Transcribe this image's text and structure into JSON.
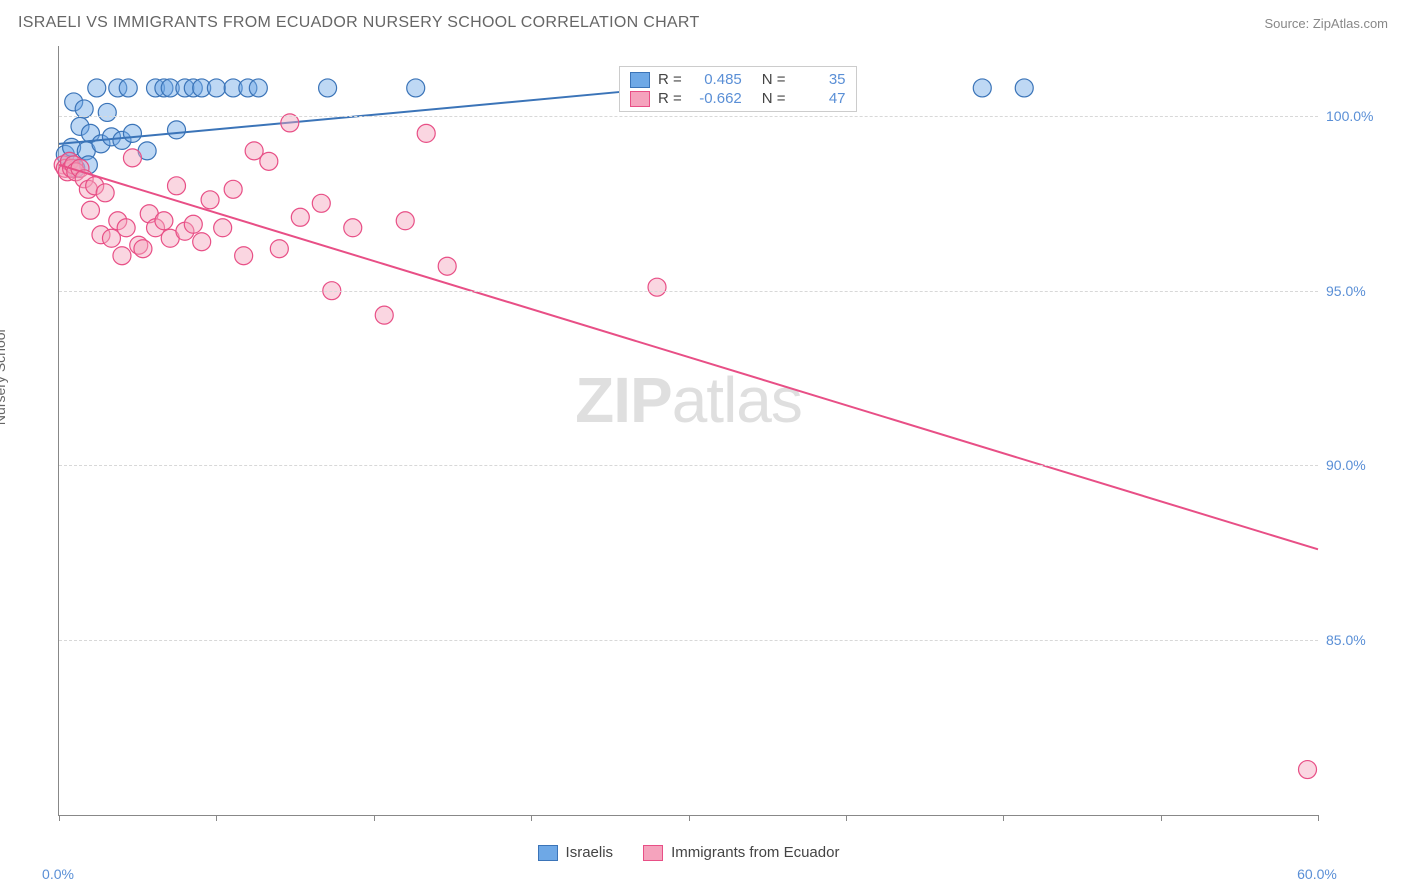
{
  "header": {
    "title": "ISRAELI VS IMMIGRANTS FROM ECUADOR NURSERY SCHOOL CORRELATION CHART",
    "source_label": "Source: ZipAtlas.com"
  },
  "chart": {
    "type": "scatter",
    "y_axis_label": "Nursery School",
    "xlim": [
      0,
      60
    ],
    "ylim": [
      80,
      102
    ],
    "x_ticks": [
      0,
      7.5,
      15,
      22.5,
      30,
      37.5,
      45,
      52.5,
      60
    ],
    "x_tick_labels": {
      "0": "0.0%",
      "60": "60.0%"
    },
    "y_ticks": [
      85,
      90,
      95,
      100
    ],
    "y_tick_labels": {
      "85": "85.0%",
      "90": "90.0%",
      "95": "95.0%",
      "100": "100.0%"
    },
    "grid_color": "#d8d8d8",
    "background_color": "#ffffff",
    "axis_color": "#888888",
    "tick_label_color": "#5a8fd6",
    "watermark": "ZIPatlas",
    "marker_radius": 9,
    "marker_opacity": 0.45,
    "line_width": 2,
    "series": [
      {
        "name": "Israelis",
        "color_fill": "#6ea8e6",
        "color_stroke": "#3b74b8",
        "R": "0.485",
        "N": "35",
        "trend": {
          "x1": 0,
          "y1": 99.2,
          "x2": 27,
          "y2": 100.7
        },
        "points": [
          [
            0.3,
            98.9
          ],
          [
            0.5,
            98.7
          ],
          [
            0.6,
            99.1
          ],
          [
            0.7,
            100.4
          ],
          [
            0.8,
            98.5
          ],
          [
            1.0,
            99.7
          ],
          [
            1.2,
            100.2
          ],
          [
            1.3,
            99.0
          ],
          [
            1.4,
            98.6
          ],
          [
            1.5,
            99.5
          ],
          [
            1.8,
            100.8
          ],
          [
            2.0,
            99.2
          ],
          [
            2.3,
            100.1
          ],
          [
            2.5,
            99.4
          ],
          [
            2.8,
            100.8
          ],
          [
            3.0,
            99.3
          ],
          [
            3.3,
            100.8
          ],
          [
            3.5,
            99.5
          ],
          [
            4.2,
            99.0
          ],
          [
            4.6,
            100.8
          ],
          [
            5.0,
            100.8
          ],
          [
            5.3,
            100.8
          ],
          [
            5.6,
            99.6
          ],
          [
            6.0,
            100.8
          ],
          [
            6.4,
            100.8
          ],
          [
            6.8,
            100.8
          ],
          [
            7.5,
            100.8
          ],
          [
            8.3,
            100.8
          ],
          [
            9.0,
            100.8
          ],
          [
            9.5,
            100.8
          ],
          [
            12.8,
            100.8
          ],
          [
            17.0,
            100.8
          ],
          [
            35.5,
            100.5
          ],
          [
            44.0,
            100.8
          ],
          [
            46.0,
            100.8
          ]
        ]
      },
      {
        "name": "Immigrants from Ecuador",
        "color_fill": "#f5a3bd",
        "color_stroke": "#e84f86",
        "R": "-0.662",
        "N": "47",
        "trend": {
          "x1": 0,
          "y1": 98.6,
          "x2": 60,
          "y2": 87.6
        },
        "points": [
          [
            0.2,
            98.6
          ],
          [
            0.3,
            98.5
          ],
          [
            0.4,
            98.4
          ],
          [
            0.5,
            98.7
          ],
          [
            0.6,
            98.5
          ],
          [
            0.7,
            98.6
          ],
          [
            0.8,
            98.4
          ],
          [
            1.0,
            98.5
          ],
          [
            1.2,
            98.2
          ],
          [
            1.4,
            97.9
          ],
          [
            1.5,
            97.3
          ],
          [
            1.7,
            98.0
          ],
          [
            2.0,
            96.6
          ],
          [
            2.2,
            97.8
          ],
          [
            2.5,
            96.5
          ],
          [
            2.8,
            97.0
          ],
          [
            3.0,
            96.0
          ],
          [
            3.2,
            96.8
          ],
          [
            3.5,
            98.8
          ],
          [
            3.8,
            96.3
          ],
          [
            4.0,
            96.2
          ],
          [
            4.3,
            97.2
          ],
          [
            4.6,
            96.8
          ],
          [
            5.0,
            97.0
          ],
          [
            5.3,
            96.5
          ],
          [
            5.6,
            98.0
          ],
          [
            6.0,
            96.7
          ],
          [
            6.4,
            96.9
          ],
          [
            6.8,
            96.4
          ],
          [
            7.2,
            97.6
          ],
          [
            7.8,
            96.8
          ],
          [
            8.3,
            97.9
          ],
          [
            8.8,
            96.0
          ],
          [
            9.3,
            99.0
          ],
          [
            10.0,
            98.7
          ],
          [
            10.5,
            96.2
          ],
          [
            11.0,
            99.8
          ],
          [
            11.5,
            97.1
          ],
          [
            12.5,
            97.5
          ],
          [
            13.0,
            95.0
          ],
          [
            14.0,
            96.8
          ],
          [
            15.5,
            94.3
          ],
          [
            16.5,
            97.0
          ],
          [
            17.5,
            99.5
          ],
          [
            18.5,
            95.7
          ],
          [
            28.5,
            95.1
          ],
          [
            59.5,
            81.3
          ]
        ]
      }
    ],
    "legend_bottom": [
      {
        "label": "Israelis",
        "series": 0
      },
      {
        "label": "Immigrants from Ecuador",
        "series": 1
      }
    ]
  }
}
